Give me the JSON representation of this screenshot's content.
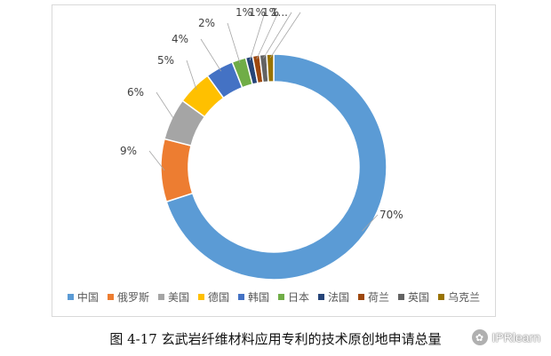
{
  "chart_data": {
    "type": "pie",
    "donut": true,
    "categories": [
      "中国",
      "俄罗斯",
      "美国",
      "德国",
      "韩国",
      "日本",
      "法国",
      "荷兰",
      "英国",
      "乌克兰"
    ],
    "values": [
      70,
      9,
      6,
      5,
      4,
      2,
      1,
      1,
      1,
      1
    ],
    "data_labels": [
      "70%",
      "9%",
      "6%",
      "5%",
      "4%",
      "2%",
      "1%",
      "1%",
      "1%",
      "1..."
    ],
    "colors": [
      "#5b9bd5",
      "#ed7d31",
      "#a5a5a5",
      "#ffc000",
      "#4472c4",
      "#70ad47",
      "#264478",
      "#9e480e",
      "#636363",
      "#997300"
    ],
    "legend_position": "bottom"
  },
  "caption": "图 4-17  玄武岩纤维材料应用专利的技术原创地申请总量",
  "watermark": "IPRlearn"
}
